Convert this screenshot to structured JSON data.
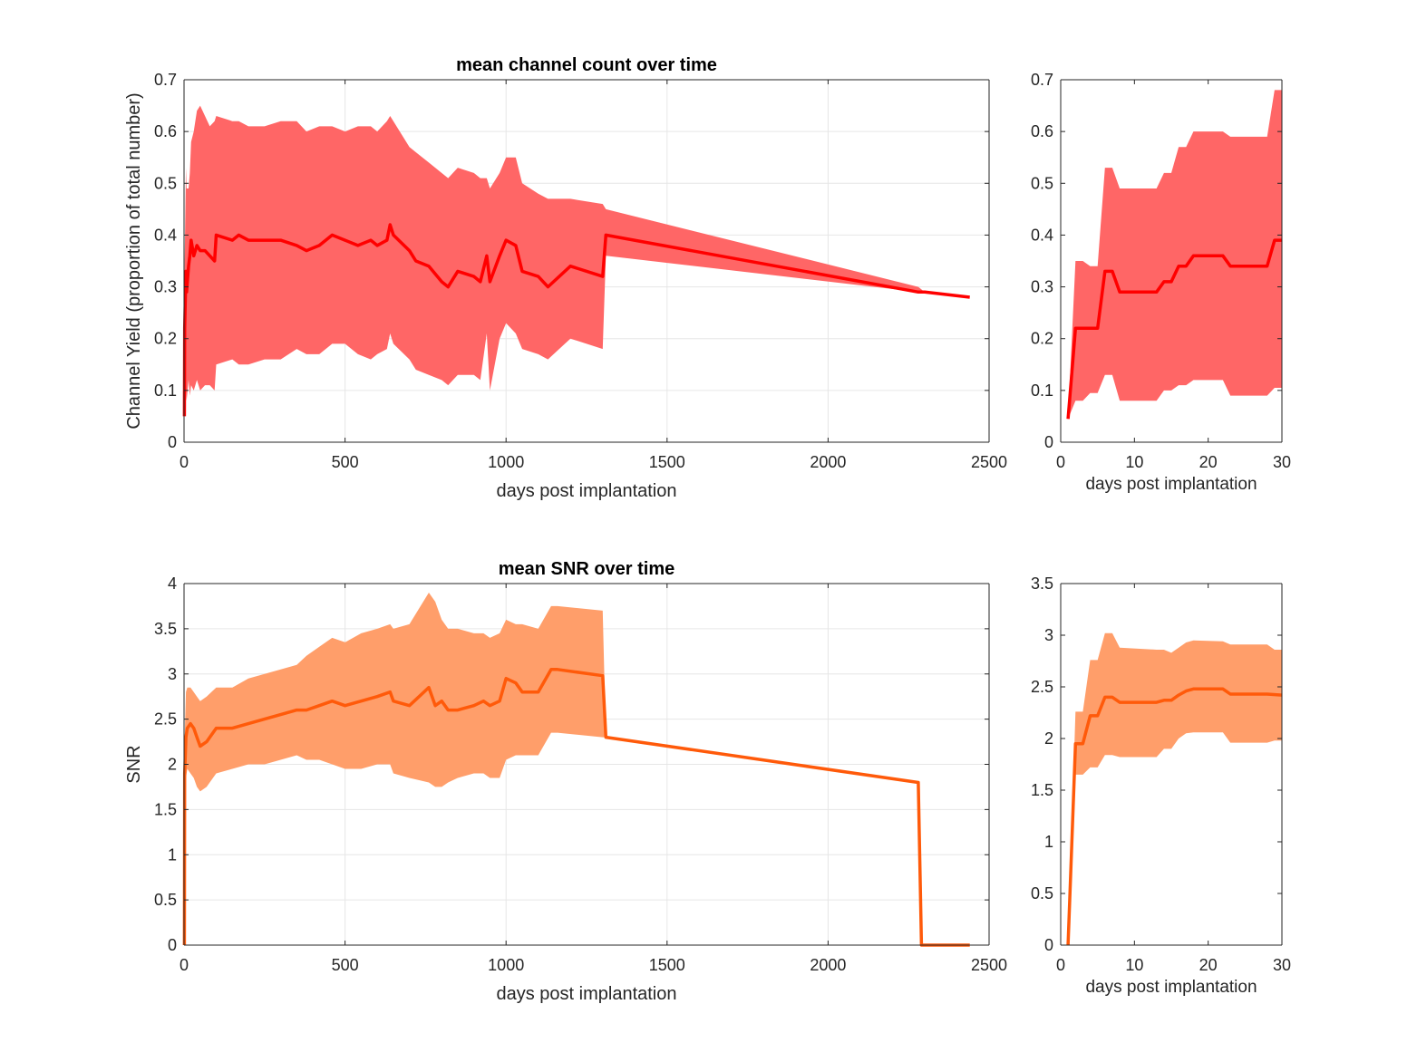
{
  "colors": {
    "yield_line": "#ff0000",
    "yield_band": "#ff6666",
    "snr_line": "#ff5a0a",
    "snr_band": "#ff9e6a",
    "grid": "#e6e6e6",
    "axis": "#262626"
  },
  "chart_data": [
    {
      "id": "yield-main",
      "type": "area",
      "title": "mean channel count over time",
      "xlabel": "days post implantation",
      "ylabel": "Channel Yield (proportion of total number)",
      "xlim": [
        0,
        2500
      ],
      "ylim": [
        0,
        0.7
      ],
      "xticks": [
        0,
        500,
        1000,
        1500,
        2000,
        2500
      ],
      "yticks": [
        0,
        0.1,
        0.2,
        0.3,
        0.4,
        0.5,
        0.6,
        0.7
      ],
      "ytick_labels": [
        "0",
        "0.1",
        "0.2",
        "0.3",
        "0.4",
        "0.5",
        "0.6",
        "0.7"
      ],
      "grid": true,
      "series": [
        {
          "kind": "mean",
          "x": [
            1,
            2,
            6,
            8,
            14,
            18,
            22,
            30,
            40,
            50,
            65,
            80,
            95,
            100,
            150,
            170,
            200,
            250,
            300,
            350,
            380,
            420,
            460,
            500,
            540,
            580,
            600,
            630,
            640,
            650,
            700,
            720,
            760,
            800,
            820,
            850,
            900,
            920,
            940,
            950,
            980,
            1000,
            1030,
            1050,
            1100,
            1130,
            1200,
            1300,
            1310,
            2280,
            2300,
            2440
          ],
          "y": [
            0.05,
            0.22,
            0.33,
            0.29,
            0.34,
            0.36,
            0.39,
            0.36,
            0.38,
            0.37,
            0.37,
            0.36,
            0.35,
            0.4,
            0.39,
            0.4,
            0.39,
            0.39,
            0.39,
            0.38,
            0.37,
            0.38,
            0.4,
            0.39,
            0.38,
            0.39,
            0.38,
            0.39,
            0.42,
            0.4,
            0.37,
            0.35,
            0.34,
            0.31,
            0.3,
            0.33,
            0.32,
            0.31,
            0.36,
            0.31,
            0.36,
            0.39,
            0.38,
            0.33,
            0.32,
            0.3,
            0.34,
            0.32,
            0.4,
            0.29,
            0.29,
            0.28
          ]
        },
        {
          "kind": "band",
          "x": [
            1,
            2,
            6,
            8,
            14,
            18,
            22,
            30,
            40,
            50,
            65,
            80,
            95,
            100,
            150,
            170,
            200,
            250,
            300,
            350,
            380,
            420,
            460,
            500,
            540,
            580,
            600,
            630,
            640,
            650,
            700,
            720,
            760,
            800,
            820,
            850,
            900,
            920,
            940,
            950,
            980,
            1000,
            1030,
            1050,
            1100,
            1130,
            1200,
            1300,
            1310,
            2280,
            2300,
            2440
          ],
          "upper": [
            0.05,
            0.35,
            0.53,
            0.49,
            0.49,
            0.52,
            0.58,
            0.6,
            0.64,
            0.65,
            0.63,
            0.61,
            0.62,
            0.63,
            0.62,
            0.62,
            0.61,
            0.61,
            0.62,
            0.62,
            0.6,
            0.61,
            0.61,
            0.6,
            0.61,
            0.61,
            0.6,
            0.62,
            0.63,
            0.62,
            0.57,
            0.56,
            0.54,
            0.52,
            0.51,
            0.53,
            0.52,
            0.51,
            0.51,
            0.49,
            0.52,
            0.55,
            0.55,
            0.5,
            0.48,
            0.47,
            0.47,
            0.46,
            0.45,
            0.3,
            0.29,
            0.28
          ],
          "lower": [
            0.05,
            0.09,
            0.1,
            0.08,
            0.12,
            0.09,
            0.11,
            0.1,
            0.12,
            0.1,
            0.11,
            0.11,
            0.1,
            0.15,
            0.16,
            0.15,
            0.15,
            0.16,
            0.16,
            0.18,
            0.17,
            0.17,
            0.19,
            0.19,
            0.17,
            0.16,
            0.17,
            0.18,
            0.21,
            0.19,
            0.16,
            0.14,
            0.13,
            0.12,
            0.11,
            0.13,
            0.13,
            0.12,
            0.21,
            0.1,
            0.2,
            0.23,
            0.21,
            0.18,
            0.17,
            0.16,
            0.2,
            0.18,
            0.36,
            0.29,
            0.29,
            0.28
          ]
        }
      ]
    },
    {
      "id": "yield-zoom",
      "type": "area",
      "title": "",
      "xlabel": "days post implantation",
      "ylabel": "",
      "xlim": [
        0,
        30
      ],
      "ylim": [
        0,
        0.7
      ],
      "xticks": [
        0,
        10,
        20,
        30
      ],
      "yticks": [
        0,
        0.1,
        0.2,
        0.3,
        0.4,
        0.5,
        0.6,
        0.7
      ],
      "ytick_labels": [
        "0",
        "0.1",
        "0.2",
        "0.3",
        "0.4",
        "0.5",
        "0.6",
        "0.7"
      ],
      "grid": false,
      "series": [
        {
          "kind": "mean",
          "x": [
            1,
            2,
            4,
            5,
            6,
            7,
            8,
            13,
            14,
            15,
            16,
            17,
            18,
            22,
            23,
            28,
            29,
            30
          ],
          "y": [
            0.045,
            0.22,
            0.22,
            0.22,
            0.33,
            0.33,
            0.29,
            0.29,
            0.31,
            0.31,
            0.34,
            0.34,
            0.36,
            0.36,
            0.34,
            0.34,
            0.39,
            0.39
          ]
        },
        {
          "kind": "band",
          "x": [
            1,
            2,
            3,
            4,
            5,
            6,
            7,
            8,
            13,
            14,
            15,
            16,
            17,
            18,
            22,
            23,
            28,
            29,
            30
          ],
          "upper": [
            0.045,
            0.35,
            0.35,
            0.34,
            0.34,
            0.53,
            0.53,
            0.49,
            0.49,
            0.52,
            0.52,
            0.57,
            0.57,
            0.6,
            0.6,
            0.59,
            0.59,
            0.68,
            0.68
          ],
          "lower": [
            0.045,
            0.08,
            0.08,
            0.095,
            0.095,
            0.13,
            0.13,
            0.08,
            0.08,
            0.1,
            0.1,
            0.11,
            0.11,
            0.12,
            0.12,
            0.09,
            0.09,
            0.105,
            0.105
          ]
        }
      ]
    },
    {
      "id": "snr-main",
      "type": "area",
      "title": "mean SNR over time",
      "xlabel": "days post implantation",
      "ylabel": "SNR",
      "xlim": [
        0,
        2500
      ],
      "ylim": [
        0,
        4
      ],
      "xticks": [
        0,
        500,
        1000,
        1500,
        2000,
        2500
      ],
      "yticks": [
        0,
        0.5,
        1,
        1.5,
        2,
        2.5,
        3,
        3.5,
        4
      ],
      "ytick_labels": [
        "0",
        "0.5",
        "1",
        "1.5",
        "2",
        "2.5",
        "3",
        "3.5",
        "4"
      ],
      "grid": true,
      "series": [
        {
          "kind": "mean",
          "x": [
            1,
            2,
            6,
            10,
            20,
            30,
            40,
            50,
            70,
            100,
            150,
            200,
            250,
            300,
            350,
            380,
            420,
            460,
            500,
            550,
            600,
            640,
            650,
            700,
            760,
            780,
            800,
            820,
            850,
            900,
            930,
            950,
            980,
            1000,
            1030,
            1050,
            1100,
            1140,
            1160,
            1300,
            1310,
            2280,
            2290,
            2440
          ],
          "y": [
            0,
            1.9,
            2.3,
            2.4,
            2.45,
            2.4,
            2.3,
            2.2,
            2.25,
            2.4,
            2.4,
            2.45,
            2.5,
            2.55,
            2.6,
            2.6,
            2.65,
            2.7,
            2.65,
            2.7,
            2.75,
            2.8,
            2.7,
            2.65,
            2.85,
            2.65,
            2.7,
            2.6,
            2.6,
            2.65,
            2.7,
            2.65,
            2.7,
            2.95,
            2.9,
            2.8,
            2.8,
            3.05,
            3.05,
            2.98,
            2.3,
            1.8,
            0,
            0
          ]
        },
        {
          "kind": "band",
          "x": [
            1,
            2,
            6,
            10,
            20,
            30,
            40,
            50,
            70,
            100,
            150,
            200,
            250,
            300,
            350,
            380,
            420,
            460,
            500,
            550,
            600,
            640,
            650,
            700,
            760,
            780,
            800,
            820,
            850,
            900,
            930,
            950,
            980,
            1000,
            1030,
            1050,
            1100,
            1140,
            1160,
            1300,
            1310,
            2280,
            2290,
            2440
          ],
          "upper": [
            0,
            2.3,
            2.8,
            2.85,
            2.85,
            2.8,
            2.75,
            2.7,
            2.75,
            2.85,
            2.85,
            2.95,
            3.0,
            3.05,
            3.1,
            3.2,
            3.3,
            3.4,
            3.35,
            3.45,
            3.5,
            3.55,
            3.5,
            3.55,
            3.9,
            3.8,
            3.6,
            3.5,
            3.5,
            3.45,
            3.45,
            3.4,
            3.45,
            3.6,
            3.55,
            3.55,
            3.5,
            3.75,
            3.75,
            3.7,
            2.3,
            1.8,
            0,
            0
          ],
          "lower": [
            0,
            1.8,
            1.85,
            1.95,
            1.9,
            1.85,
            1.75,
            1.7,
            1.75,
            1.9,
            1.95,
            2.0,
            2.0,
            2.05,
            2.1,
            2.05,
            2.05,
            2.0,
            1.95,
            1.95,
            2.0,
            2.0,
            1.9,
            1.85,
            1.8,
            1.75,
            1.75,
            1.8,
            1.85,
            1.9,
            1.9,
            1.85,
            1.85,
            2.05,
            2.1,
            2.1,
            2.1,
            2.35,
            2.35,
            2.3,
            2.3,
            1.8,
            0,
            0
          ]
        }
      ]
    },
    {
      "id": "snr-zoom",
      "type": "area",
      "title": "",
      "xlabel": "days post implantation",
      "ylabel": "",
      "xlim": [
        0,
        30
      ],
      "ylim": [
        0,
        3.5
      ],
      "xticks": [
        0,
        10,
        20,
        30
      ],
      "yticks": [
        0,
        0.5,
        1,
        1.5,
        2,
        2.5,
        3,
        3.5
      ],
      "ytick_labels": [
        "0",
        "0.5",
        "1",
        "1.5",
        "2",
        "2.5",
        "3",
        "3.5"
      ],
      "grid": false,
      "series": [
        {
          "kind": "mean",
          "x": [
            1,
            2,
            3,
            4,
            5,
            6,
            7,
            8,
            13,
            14,
            15,
            16,
            17,
            18,
            22,
            23,
            28,
            30
          ],
          "y": [
            0,
            1.95,
            1.95,
            2.22,
            2.22,
            2.4,
            2.4,
            2.35,
            2.35,
            2.37,
            2.37,
            2.42,
            2.46,
            2.48,
            2.48,
            2.43,
            2.43,
            2.42
          ]
        },
        {
          "kind": "band",
          "x": [
            1,
            2,
            3,
            4,
            5,
            6,
            7,
            8,
            13,
            14,
            15,
            16,
            17,
            18,
            22,
            23,
            28,
            29,
            30
          ],
          "upper": [
            0,
            2.26,
            2.26,
            2.76,
            2.76,
            3.02,
            3.02,
            2.88,
            2.86,
            2.86,
            2.83,
            2.88,
            2.93,
            2.95,
            2.94,
            2.91,
            2.91,
            2.86,
            2.86
          ],
          "lower": [
            0,
            1.65,
            1.65,
            1.72,
            1.72,
            1.84,
            1.84,
            1.82,
            1.82,
            1.9,
            1.9,
            2.0,
            2.05,
            2.06,
            2.06,
            1.96,
            1.96,
            1.98,
            1.98
          ]
        }
      ]
    }
  ]
}
